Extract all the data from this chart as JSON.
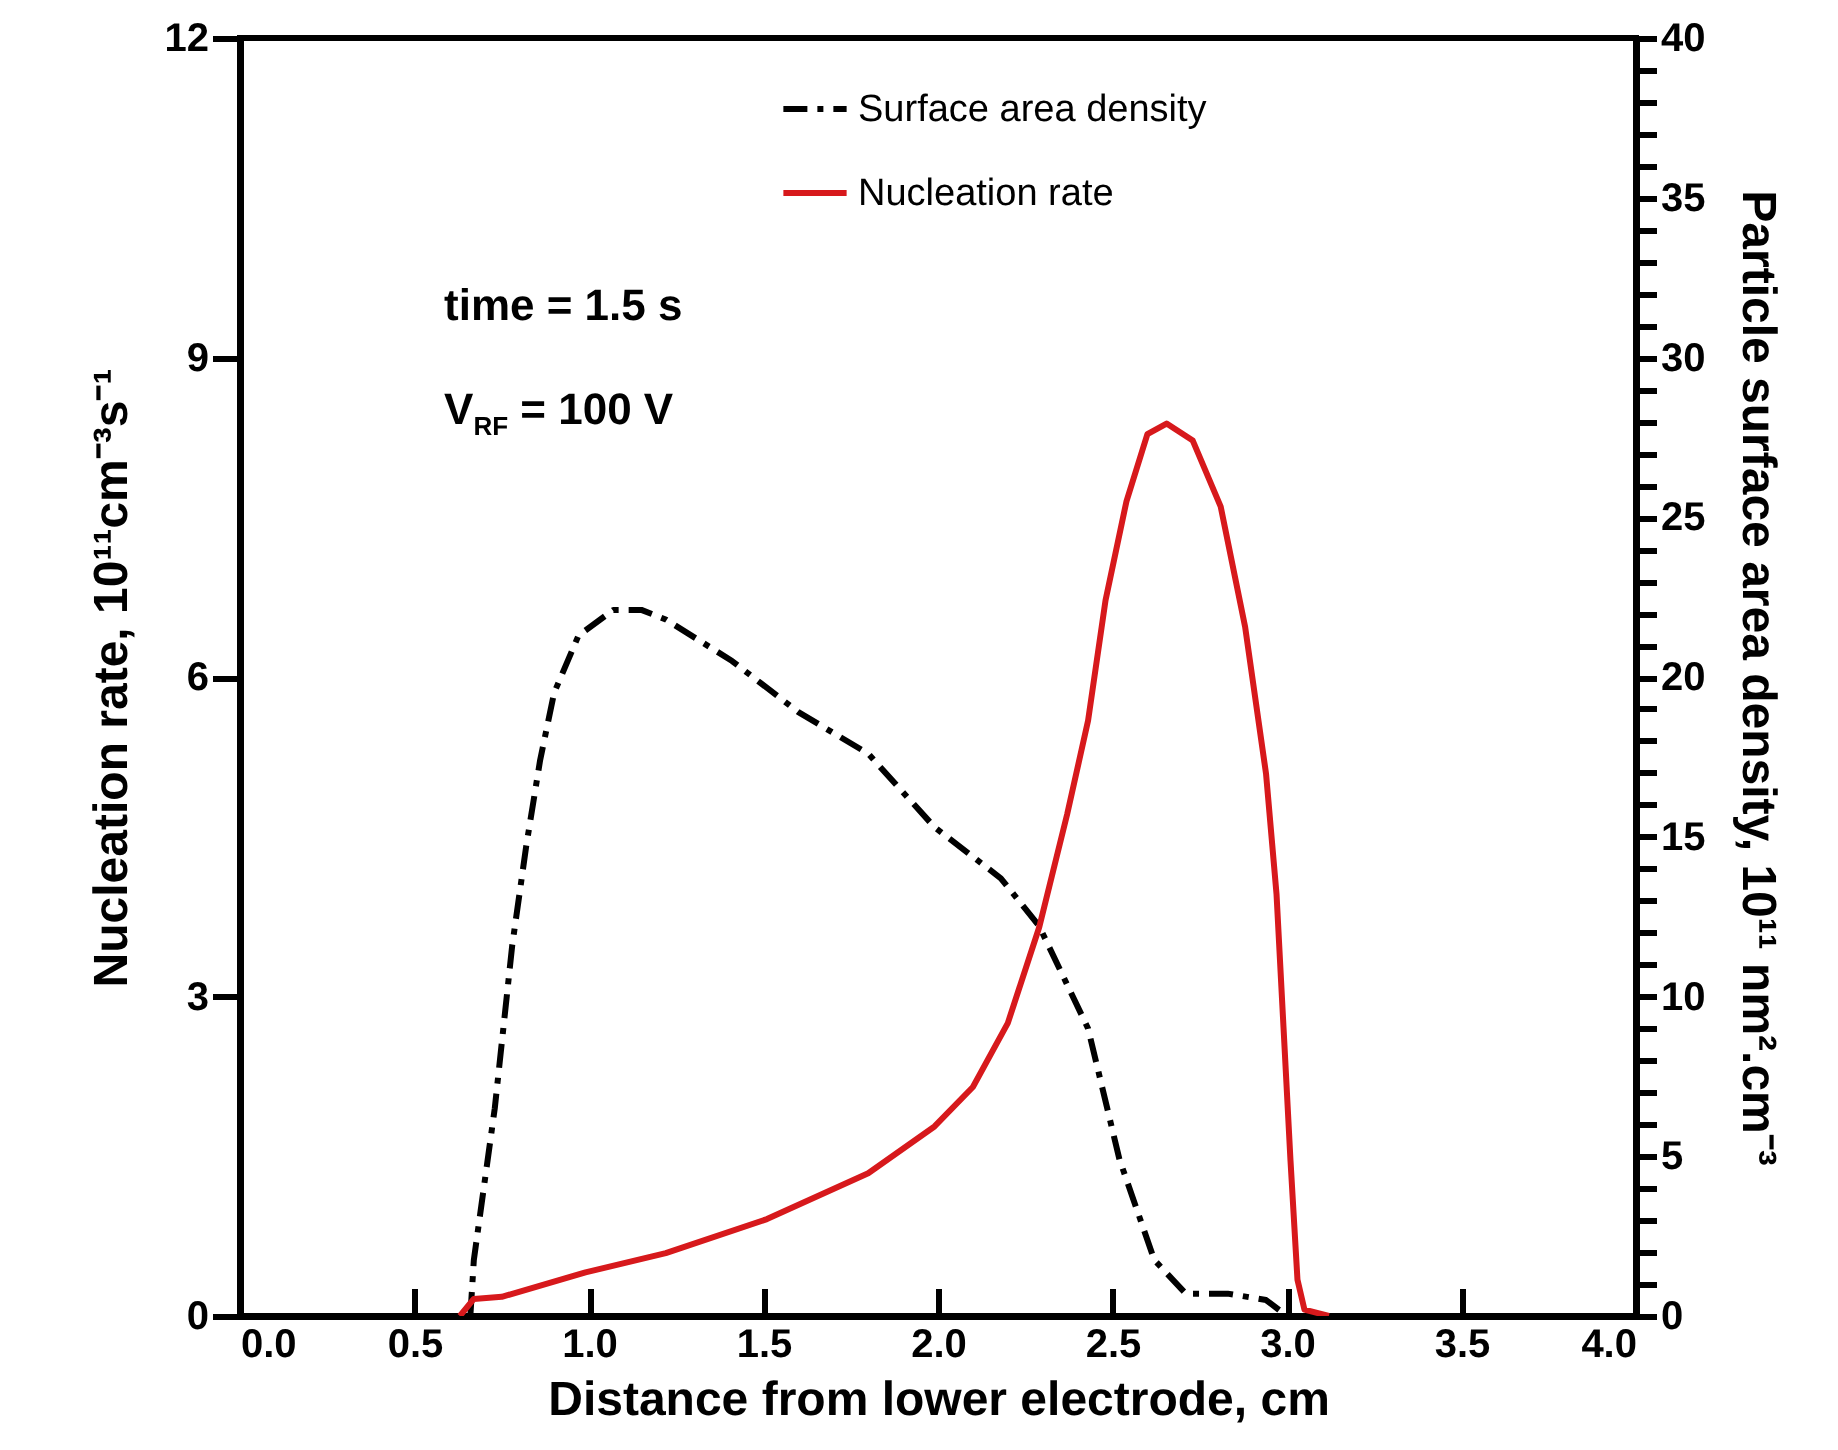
{
  "chart_data": {
    "type": "line",
    "xlabel": "Distance from lower electrode, cm",
    "ylabel": "Nucleation rate, 10¹¹cm⁻³s⁻¹",
    "y2label": "Particle surface area density, 10¹¹ nm².cm⁻³",
    "annotations": [
      "time = 1.5 s",
      "V$_{RF}$ = 100 V"
    ],
    "xlim": [
      0,
      4
    ],
    "xticks": [
      {
        "value": 0,
        "label": "0.0"
      },
      {
        "value": 0.5,
        "label": "0.5"
      },
      {
        "value": 1,
        "label": "1.0"
      },
      {
        "value": 1.5,
        "label": "1.5"
      },
      {
        "value": 2,
        "label": "2.0"
      },
      {
        "value": 2.5,
        "label": "2.5"
      },
      {
        "value": 3,
        "label": "3.0"
      },
      {
        "value": 3.5,
        "label": "3.5"
      },
      {
        "value": 4,
        "label": "4.0"
      }
    ],
    "ylim": [
      0,
      12
    ],
    "yticks": [
      0,
      3,
      6,
      9,
      12
    ],
    "y2lim": [
      0,
      40
    ],
    "y2ticks": [
      0,
      {
        "value": 1,
        "label": null
      },
      {
        "value": 2,
        "label": null
      },
      {
        "value": 3,
        "label": null
      },
      {
        "value": 4,
        "label": null
      },
      5,
      {
        "value": 6,
        "label": null
      },
      {
        "value": 7,
        "label": null
      },
      {
        "value": 8,
        "label": null
      },
      {
        "value": 9,
        "label": null
      },
      10,
      {
        "value": 11,
        "label": null
      },
      {
        "value": 12,
        "label": null
      },
      {
        "value": 13,
        "label": null
      },
      {
        "value": 14,
        "label": null
      },
      15,
      {
        "value": 16,
        "label": null
      },
      {
        "value": 17,
        "label": null
      },
      {
        "value": 18,
        "label": null
      },
      {
        "value": 19,
        "label": null
      },
      20,
      {
        "value": 21,
        "label": null
      },
      {
        "value": 22,
        "label": null
      },
      {
        "value": 23,
        "label": null
      },
      {
        "value": 24,
        "label": null
      },
      25,
      {
        "value": 26,
        "label": null
      },
      {
        "value": 27,
        "label": null
      },
      {
        "value": 28,
        "label": null
      },
      {
        "value": 29,
        "label": null
      },
      30,
      {
        "value": 31,
        "label": null
      },
      {
        "value": 32,
        "label": null
      },
      {
        "value": 33,
        "label": null
      },
      {
        "value": 34,
        "label": null
      },
      35,
      {
        "value": 36,
        "label": null
      },
      {
        "value": 37,
        "label": null
      },
      {
        "value": 38,
        "label": null
      },
      {
        "value": 39,
        "label": null
      },
      40
    ],
    "grid": false,
    "legend": "top",
    "marker": "none",
    "series": [
      {
        "name": "Surface area density",
        "color": "#000000",
        "axis": "y2",
        "line_style": "dashed",
        "x": [
          0.66,
          0.67,
          0.73,
          0.78,
          0.82,
          0.86,
          0.9,
          0.97,
          1.07,
          1.15,
          1.22,
          1.41,
          1.6,
          1.8,
          1.99,
          2.18,
          2.29,
          2.43,
          2.52,
          2.62,
          2.71,
          2.83,
          2.94,
          3.0
        ],
        "values": [
          0,
          1.75,
          6.5,
          11.6,
          14.7,
          17.4,
          19.5,
          21.3,
          22.1,
          22.1,
          21.8,
          20.5,
          18.9,
          17.6,
          15.3,
          13.7,
          12.2,
          9.0,
          4.9,
          1.75,
          0.7,
          0.7,
          0.5,
          0
        ]
      },
      {
        "name": "Nucleation rate",
        "color": "#d7191c",
        "line_style": "solid",
        "x": [
          0.63,
          0.67,
          0.75,
          0.99,
          1.22,
          1.51,
          1.8,
          1.99,
          2.1,
          2.2,
          2.29,
          2.37,
          2.43,
          2.48,
          2.54,
          2.6,
          2.655,
          2.73,
          2.81,
          2.88,
          2.94,
          2.97,
          2.99,
          3.01,
          3.03,
          3.05,
          3.12
        ],
        "values": [
          0,
          0.16,
          0.18,
          0.41,
          0.59,
          0.91,
          1.34,
          1.78,
          2.15,
          2.75,
          3.65,
          4.71,
          5.59,
          6.72,
          7.65,
          8.28,
          8.38,
          8.22,
          7.6,
          6.47,
          5.09,
          3.96,
          2.71,
          1.46,
          0.34,
          0.06,
          0
        ]
      }
    ]
  }
}
